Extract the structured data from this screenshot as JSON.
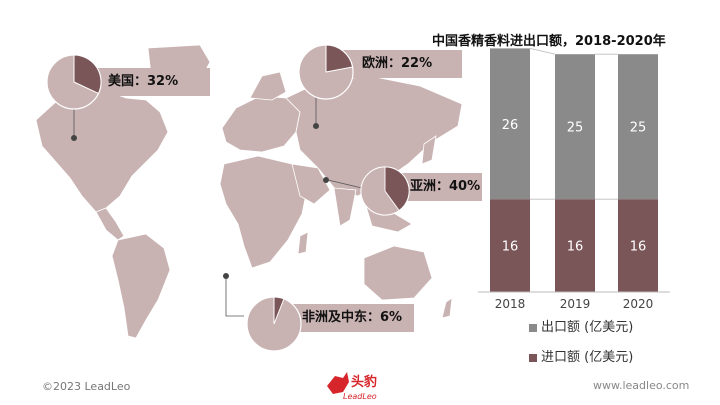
{
  "chart_data": [
    {
      "type": "pie",
      "title": "",
      "slices": [
        {
          "label": "美国：32%",
          "value": 32
        },
        {
          "label": "欧洲：22%",
          "value": 22
        },
        {
          "label": "亚洲：40%",
          "value": 40
        },
        {
          "label": "非洲及中东：6%",
          "value": 6
        }
      ]
    },
    {
      "type": "bar",
      "stacked": true,
      "title": "中国香精香料进出口额，2018-2020年",
      "categories": [
        "2018",
        "2019",
        "2020"
      ],
      "series": [
        {
          "name": "进口额 (亿美元)",
          "values": [
            16,
            16,
            16
          ]
        },
        {
          "name": "出口额 (亿美元)",
          "values": [
            26,
            25,
            25
          ]
        }
      ],
      "colors": {
        "import": "#7a5658",
        "export": "#8a8a8a",
        "connector": "#bdbdbd"
      }
    }
  ],
  "legend": {
    "export": "出口额 (亿美元)",
    "import": "进口额 (亿美元)"
  },
  "footer": {
    "copyright": "©2023 LeadLeo",
    "logo_main": "头豹",
    "logo_sub": "LeadLeo",
    "url": "www.leadleo.com"
  },
  "colors": {
    "map": "#c9b2b2",
    "pie_rest": "#c9b2b2",
    "pie_slice": "#7a5658",
    "label_bg": "#c9b2b2",
    "logo_red": "#d7262b"
  }
}
